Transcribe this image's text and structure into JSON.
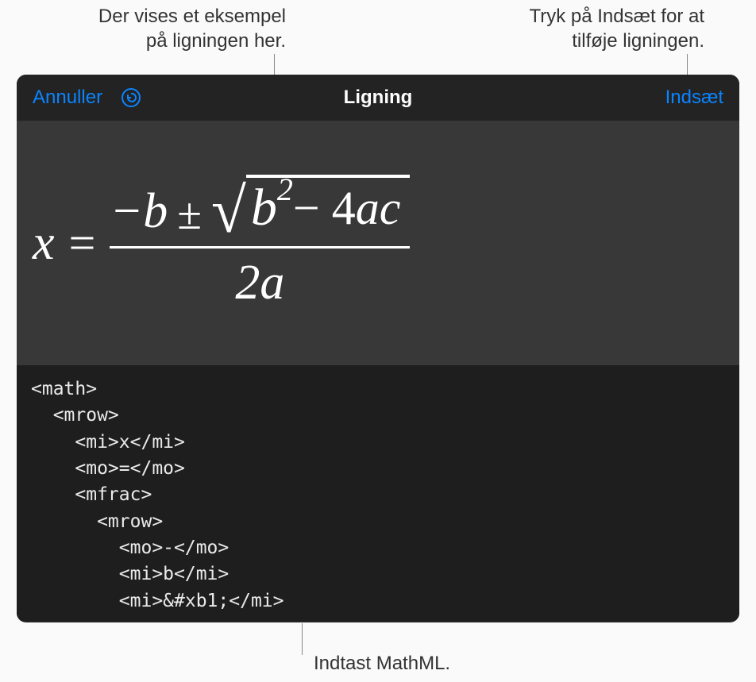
{
  "callouts": {
    "preview": "Der vises et eksempel\npå ligningen her.",
    "insert": "Tryk på Indsæt for at\ntilføje ligningen.",
    "input": "Indtast MathML."
  },
  "dialog": {
    "cancel_label": "Annuller",
    "title": "Ligning",
    "insert_label": "Indsæt"
  },
  "equation": {
    "x": "x",
    "eq": "=",
    "neg": "−",
    "b": "b",
    "pm": "±",
    "b2": "b",
    "exp": "2",
    "minus": " − 4",
    "ac": "ac",
    "denom": "2a"
  },
  "code_lines": [
    "<math>",
    "  <mrow>",
    "    <mi>x</mi>",
    "    <mo>=</mo>",
    "    <mfrac>",
    "      <mrow>",
    "        <mo>-</mo>",
    "        <mi>b</mi>",
    "        <mi>&#xb1;</mi>"
  ],
  "colors": {
    "accent": "#0a84ff",
    "dialog_bg": "#232323",
    "preview_bg": "#383838",
    "code_bg": "#1e1e1e",
    "text_light": "#ffffff",
    "code_text": "#eaeaea",
    "callout_text": "#333333"
  }
}
